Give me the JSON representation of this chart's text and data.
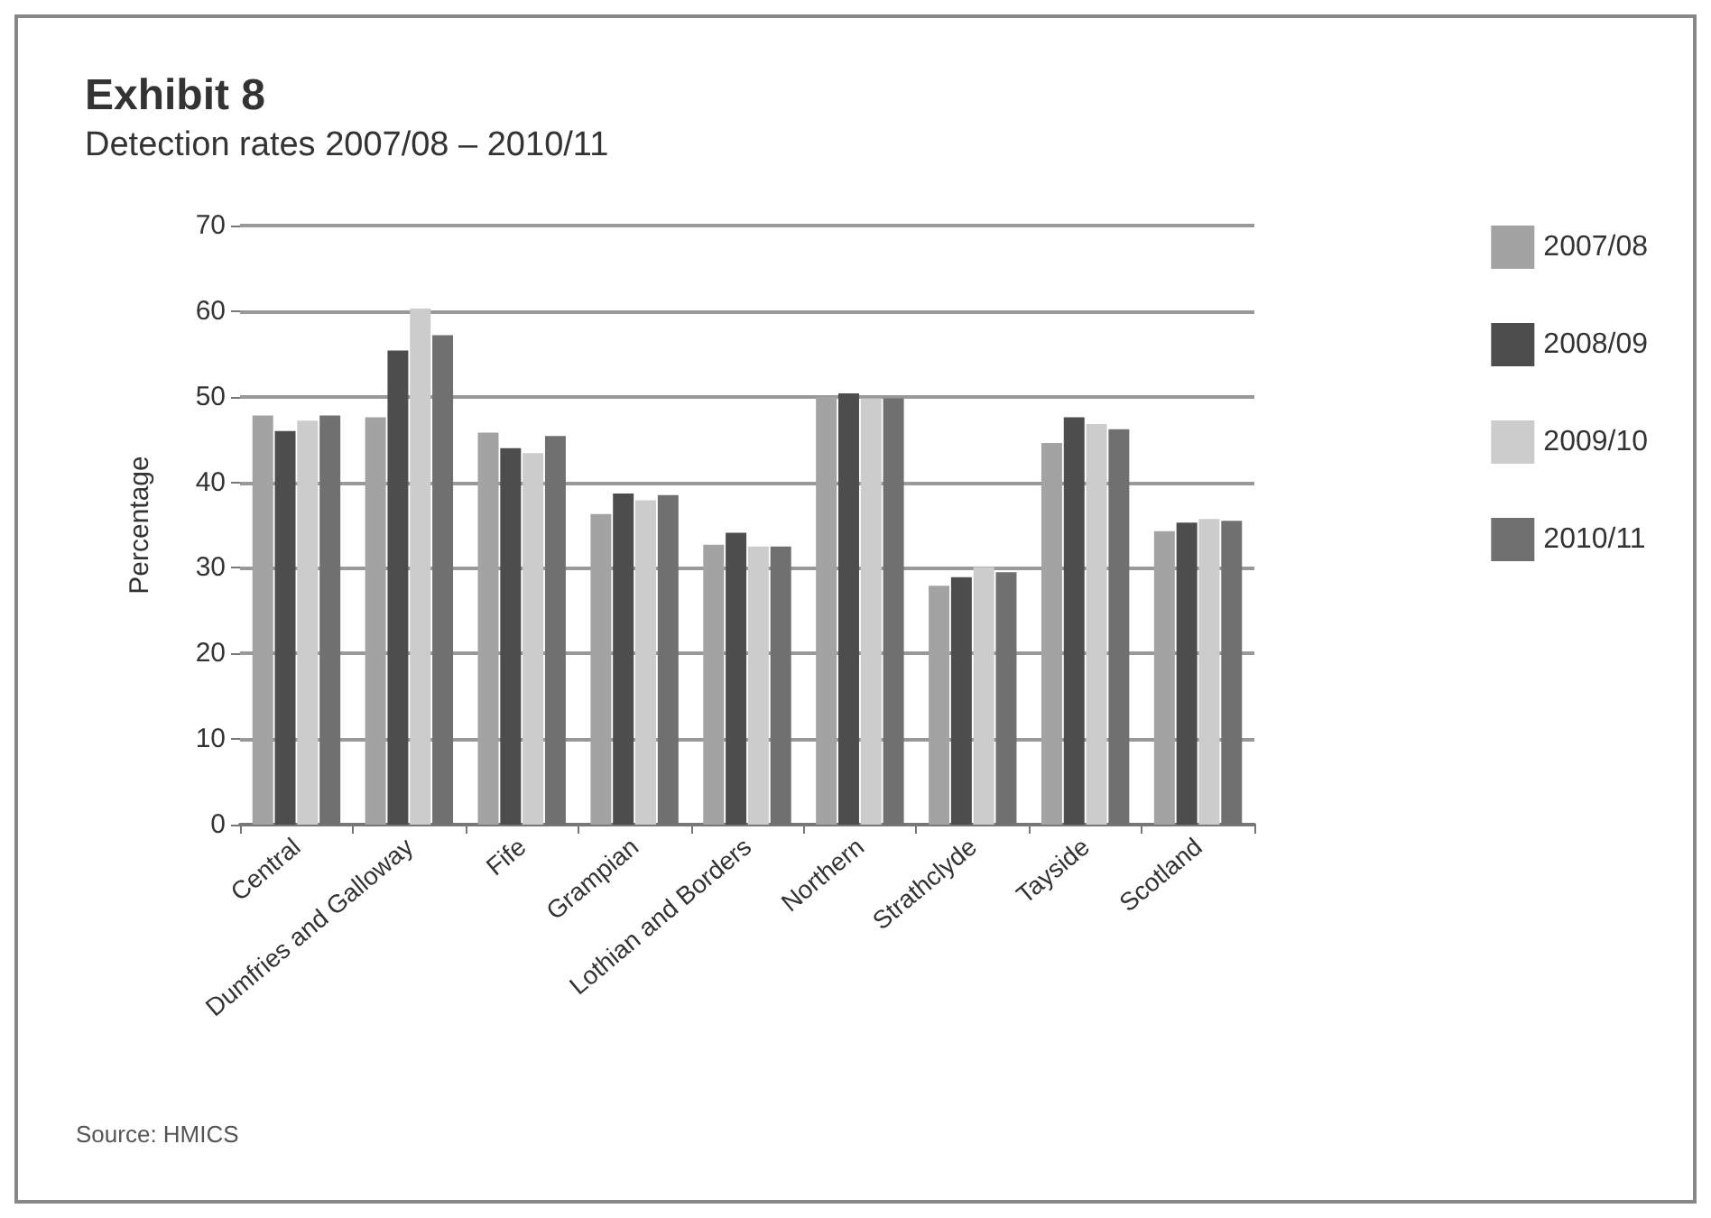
{
  "chart_data": {
    "type": "bar",
    "title": "Exhibit 8",
    "subtitle": "Detection rates 2007/08 – 2010/11",
    "ylabel": "Percentage",
    "categories": [
      "Central",
      "Dumfries and Galloway",
      "Fife",
      "Grampian",
      "Lothian and Borders",
      "Northern",
      "Strathclyde",
      "Tayside",
      "Scotland"
    ],
    "series": [
      {
        "name": "2007/08",
        "color": "#a3a3a3",
        "values": [
          47.8,
          47.6,
          45.8,
          36.3,
          32.7,
          50.0,
          27.9,
          44.6,
          34.3
        ]
      },
      {
        "name": "2008/09",
        "color": "#4d4d4d",
        "values": [
          46.0,
          55.4,
          44.0,
          38.7,
          34.1,
          50.4,
          28.9,
          47.6,
          35.3
        ]
      },
      {
        "name": "2009/10",
        "color": "#cccccc",
        "values": [
          47.2,
          60.3,
          43.4,
          37.9,
          32.5,
          49.8,
          30.1,
          46.8,
          35.7
        ]
      },
      {
        "name": "2010/11",
        "color": "#707070",
        "values": [
          47.8,
          57.2,
          45.4,
          38.5,
          32.5,
          49.8,
          29.5,
          46.2,
          35.5
        ]
      }
    ],
    "ylim": [
      0,
      70
    ],
    "yticks": [
      0,
      10,
      20,
      30,
      40,
      50,
      60,
      70
    ],
    "grid": "y",
    "legend": "right",
    "annotations": [
      "Source: HMICS"
    ]
  }
}
